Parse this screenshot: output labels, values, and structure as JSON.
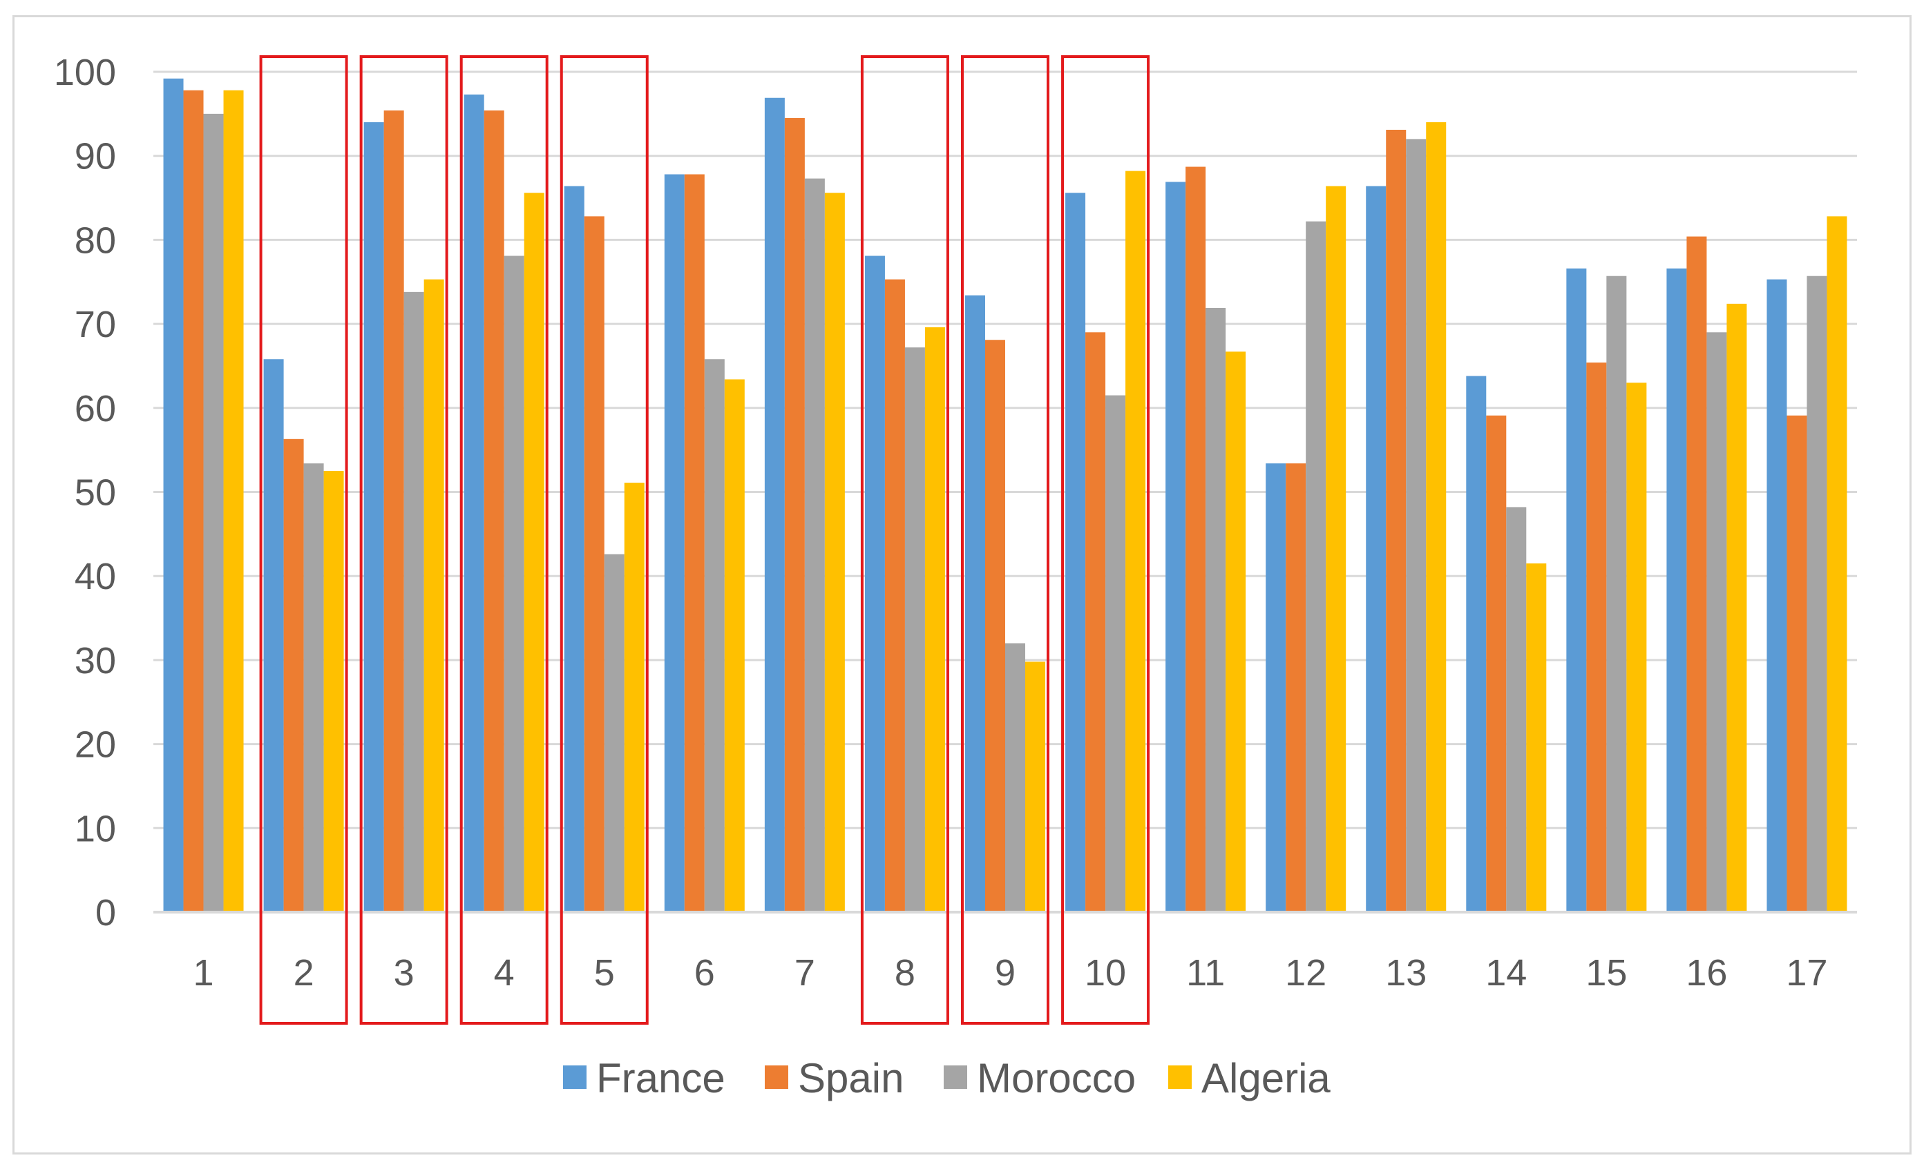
{
  "chart_data": {
    "type": "bar",
    "categories": [
      "1",
      "2",
      "3",
      "4",
      "5",
      "6",
      "7",
      "8",
      "9",
      "10",
      "11",
      "12",
      "13",
      "14",
      "15",
      "16",
      "17"
    ],
    "series": [
      {
        "name": "France",
        "color": "#5B9BD5",
        "values": [
          99.2,
          65.8,
          94.0,
          97.3,
          86.4,
          87.8,
          96.9,
          78.1,
          73.4,
          85.6,
          86.9,
          53.4,
          86.4,
          63.8,
          76.6,
          76.6,
          75.3
        ]
      },
      {
        "name": "Spain",
        "color": "#ED7D31",
        "values": [
          97.8,
          56.3,
          95.4,
          95.4,
          82.8,
          87.8,
          94.5,
          75.3,
          68.1,
          69.0,
          88.7,
          53.4,
          93.1,
          59.1,
          65.4,
          80.4,
          59.1
        ]
      },
      {
        "name": "Morocco",
        "color": "#A5A5A5",
        "values": [
          95.0,
          53.4,
          73.8,
          78.1,
          42.6,
          65.8,
          87.3,
          67.2,
          32.0,
          61.5,
          71.9,
          82.2,
          92.0,
          48.2,
          75.7,
          69.0,
          75.7
        ]
      },
      {
        "name": "Algeria",
        "color": "#FFC000",
        "values": [
          97.8,
          52.5,
          75.3,
          85.6,
          51.1,
          63.4,
          85.6,
          69.6,
          29.8,
          88.2,
          66.7,
          86.4,
          94.0,
          41.5,
          63.0,
          72.4,
          82.8
        ]
      }
    ],
    "ylim": [
      0,
      100
    ],
    "yticks": [
      "0",
      "10",
      "20",
      "30",
      "40",
      "50",
      "60",
      "70",
      "80",
      "90",
      "100"
    ],
    "grid": true,
    "legend_position": "bottom",
    "highlighted_categories": [
      "2",
      "3",
      "4",
      "5",
      "8",
      "9",
      "10"
    ],
    "highlight_color": "#E31A1C",
    "gridline_color": "#d9d9d9",
    "title": "",
    "xlabel": "",
    "ylabel": ""
  }
}
